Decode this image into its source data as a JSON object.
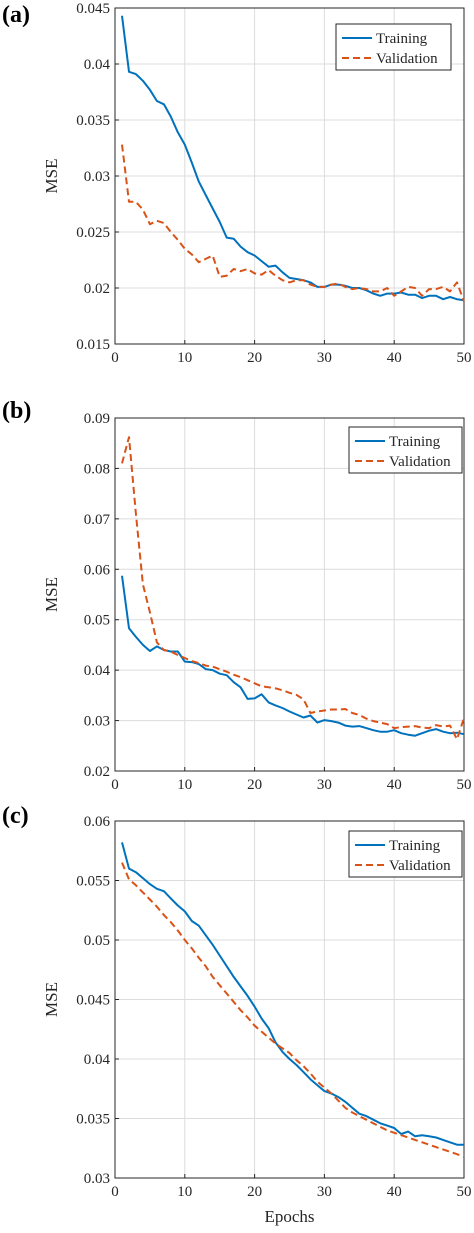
{
  "chart_data": [
    {
      "type": "line",
      "panel_label": "(a)",
      "xlabel": "",
      "ylabel": "MSE",
      "xlim": [
        0,
        50
      ],
      "ylim": [
        0.015,
        0.045
      ],
      "xticks": [
        0,
        10,
        20,
        30,
        40,
        50
      ],
      "xtick_labels": [
        "0",
        "10",
        "20",
        "30",
        "40",
        "50"
      ],
      "yticks": [
        0.015,
        0.02,
        0.025,
        0.03,
        0.035,
        0.04,
        0.045
      ],
      "ytick_labels": [
        "0.015",
        "0.02",
        "0.025",
        "0.03",
        "0.035",
        "0.04",
        "0.045"
      ],
      "grid": true,
      "legend_position": "top-right",
      "x": [
        1,
        2,
        3,
        4,
        5,
        6,
        7,
        8,
        9,
        10,
        11,
        12,
        13,
        14,
        15,
        16,
        17,
        18,
        19,
        20,
        21,
        22,
        23,
        24,
        25,
        26,
        27,
        28,
        29,
        30,
        31,
        32,
        33,
        34,
        35,
        36,
        37,
        38,
        39,
        40,
        41,
        42,
        43,
        44,
        45,
        46,
        47,
        48,
        49,
        50
      ],
      "series": [
        {
          "name": "Training",
          "color": "#0072BD",
          "style": "solid",
          "values": [
            0.0443,
            0.0393,
            0.0391,
            0.0385,
            0.0377,
            0.0367,
            0.0364,
            0.0353,
            0.0339,
            0.0328,
            0.0312,
            0.0295,
            0.0283,
            0.0271,
            0.0259,
            0.0245,
            0.0244,
            0.0237,
            0.0232,
            0.0229,
            0.0224,
            0.0219,
            0.022,
            0.0214,
            0.0209,
            0.0208,
            0.0207,
            0.0205,
            0.0201,
            0.0201,
            0.0203,
            0.0203,
            0.0202,
            0.02,
            0.02,
            0.0198,
            0.0195,
            0.0193,
            0.0195,
            0.0195,
            0.0196,
            0.0194,
            0.0194,
            0.0191,
            0.0193,
            0.0193,
            0.019,
            0.0192,
            0.019,
            0.0189
          ]
        },
        {
          "name": "Validation",
          "color": "#D95319",
          "style": "dashed",
          "values": [
            0.0328,
            0.0277,
            0.0277,
            0.027,
            0.0257,
            0.026,
            0.0258,
            0.025,
            0.0243,
            0.0235,
            0.023,
            0.0223,
            0.0226,
            0.0229,
            0.021,
            0.0211,
            0.0217,
            0.0215,
            0.0217,
            0.0213,
            0.0212,
            0.0216,
            0.0211,
            0.0207,
            0.0205,
            0.0207,
            0.0207,
            0.0203,
            0.0201,
            0.0201,
            0.0203,
            0.0204,
            0.0201,
            0.0199,
            0.02,
            0.0199,
            0.0197,
            0.0197,
            0.02,
            0.0193,
            0.0197,
            0.0201,
            0.02,
            0.0193,
            0.0199,
            0.0199,
            0.0201,
            0.0197,
            0.0205,
            0.0188
          ]
        }
      ]
    },
    {
      "type": "line",
      "panel_label": "(b)",
      "xlabel": "",
      "ylabel": "MSE",
      "xlim": [
        0,
        50
      ],
      "ylim": [
        0.02,
        0.09
      ],
      "xticks": [
        0,
        10,
        20,
        30,
        40,
        50
      ],
      "xtick_labels": [
        "0",
        "10",
        "20",
        "30",
        "40",
        "50"
      ],
      "yticks": [
        0.02,
        0.03,
        0.04,
        0.05,
        0.06,
        0.07,
        0.08,
        0.09
      ],
      "ytick_labels": [
        "0.02",
        "0.03",
        "0.04",
        "0.05",
        "0.06",
        "0.07",
        "0.08",
        "0.09"
      ],
      "grid": true,
      "legend_position": "top-right",
      "x": [
        1,
        2,
        3,
        4,
        5,
        6,
        7,
        8,
        9,
        10,
        11,
        12,
        13,
        14,
        15,
        16,
        17,
        18,
        19,
        20,
        21,
        22,
        23,
        24,
        25,
        26,
        27,
        28,
        29,
        30,
        31,
        32,
        33,
        34,
        35,
        36,
        37,
        38,
        39,
        40,
        41,
        42,
        43,
        44,
        45,
        46,
        47,
        48,
        49,
        50
      ],
      "series": [
        {
          "name": "Training",
          "color": "#0072BD",
          "style": "solid",
          "values": [
            0.0587,
            0.0483,
            0.0466,
            0.045,
            0.0438,
            0.0447,
            0.044,
            0.0437,
            0.0437,
            0.0417,
            0.0416,
            0.0412,
            0.0402,
            0.04,
            0.0393,
            0.039,
            0.0376,
            0.0366,
            0.0343,
            0.0344,
            0.0352,
            0.0336,
            0.033,
            0.0325,
            0.0318,
            0.0312,
            0.0306,
            0.031,
            0.0296,
            0.0301,
            0.0299,
            0.0296,
            0.029,
            0.0288,
            0.0289,
            0.0285,
            0.0281,
            0.0278,
            0.0278,
            0.0281,
            0.0275,
            0.0272,
            0.027,
            0.0275,
            0.028,
            0.0283,
            0.0278,
            0.0275,
            0.0276,
            0.0273
          ]
        },
        {
          "name": "Validation",
          "color": "#D95319",
          "style": "dashed",
          "values": [
            0.081,
            0.0862,
            0.071,
            0.057,
            0.0515,
            0.0455,
            0.044,
            0.0437,
            0.043,
            0.0424,
            0.0418,
            0.0414,
            0.0409,
            0.0407,
            0.0402,
            0.0397,
            0.0391,
            0.0386,
            0.038,
            0.0374,
            0.0368,
            0.0366,
            0.0364,
            0.036,
            0.0355,
            0.0351,
            0.0342,
            0.0315,
            0.0318,
            0.032,
            0.0322,
            0.0322,
            0.0323,
            0.0315,
            0.0311,
            0.0304,
            0.0299,
            0.0296,
            0.0293,
            0.0285,
            0.0287,
            0.0288,
            0.0289,
            0.0286,
            0.0285,
            0.0291,
            0.0288,
            0.029,
            0.0263,
            0.0305
          ]
        }
      ]
    },
    {
      "type": "line",
      "panel_label": "(c)",
      "xlabel": "Epochs",
      "ylabel": "MSE",
      "xlim": [
        0,
        50
      ],
      "ylim": [
        0.03,
        0.06
      ],
      "xticks": [
        0,
        10,
        20,
        30,
        40,
        50
      ],
      "xtick_labels": [
        "0",
        "10",
        "20",
        "30",
        "40",
        "50"
      ],
      "yticks": [
        0.03,
        0.035,
        0.04,
        0.045,
        0.05,
        0.055,
        0.06
      ],
      "ytick_labels": [
        "0.03",
        "0.035",
        "0.04",
        "0.045",
        "0.05",
        "0.055",
        "0.06"
      ],
      "grid": true,
      "legend_position": "top-right",
      "x": [
        1,
        2,
        3,
        4,
        5,
        6,
        7,
        8,
        9,
        10,
        11,
        12,
        13,
        14,
        15,
        16,
        17,
        18,
        19,
        20,
        21,
        22,
        23,
        24,
        25,
        26,
        27,
        28,
        29,
        30,
        31,
        32,
        33,
        34,
        35,
        36,
        37,
        38,
        39,
        40,
        41,
        42,
        43,
        44,
        45,
        46,
        47,
        48,
        49,
        50
      ],
      "series": [
        {
          "name": "Training",
          "color": "#0072BD",
          "style": "solid",
          "values": [
            0.0582,
            0.056,
            0.0557,
            0.0552,
            0.0547,
            0.0543,
            0.0541,
            0.0535,
            0.0529,
            0.0524,
            0.0516,
            0.0512,
            0.0504,
            0.0496,
            0.0487,
            0.0478,
            0.0469,
            0.0461,
            0.0453,
            0.0444,
            0.0434,
            0.0426,
            0.0414,
            0.0406,
            0.04,
            0.0395,
            0.0389,
            0.0383,
            0.0378,
            0.0373,
            0.0371,
            0.0368,
            0.0364,
            0.0359,
            0.0354,
            0.0352,
            0.0349,
            0.0346,
            0.0344,
            0.0342,
            0.0337,
            0.0339,
            0.0335,
            0.0336,
            0.0335,
            0.0334,
            0.0332,
            0.033,
            0.0328,
            0.0328
          ]
        },
        {
          "name": "Validation",
          "color": "#D95319",
          "style": "dashed",
          "values": [
            0.0565,
            0.0551,
            0.0546,
            0.054,
            0.0534,
            0.0528,
            0.0521,
            0.0515,
            0.0508,
            0.05,
            0.0493,
            0.0485,
            0.0478,
            0.0469,
            0.0462,
            0.0455,
            0.0448,
            0.0441,
            0.0435,
            0.0428,
            0.0423,
            0.0418,
            0.0413,
            0.0409,
            0.0405,
            0.0399,
            0.0394,
            0.0388,
            0.0381,
            0.0376,
            0.0371,
            0.0365,
            0.0359,
            0.0355,
            0.0352,
            0.0349,
            0.0346,
            0.0343,
            0.034,
            0.0338,
            0.0336,
            0.0334,
            0.0332,
            0.033,
            0.0328,
            0.0326,
            0.0324,
            0.0322,
            0.032,
            0.0318
          ]
        }
      ]
    }
  ]
}
